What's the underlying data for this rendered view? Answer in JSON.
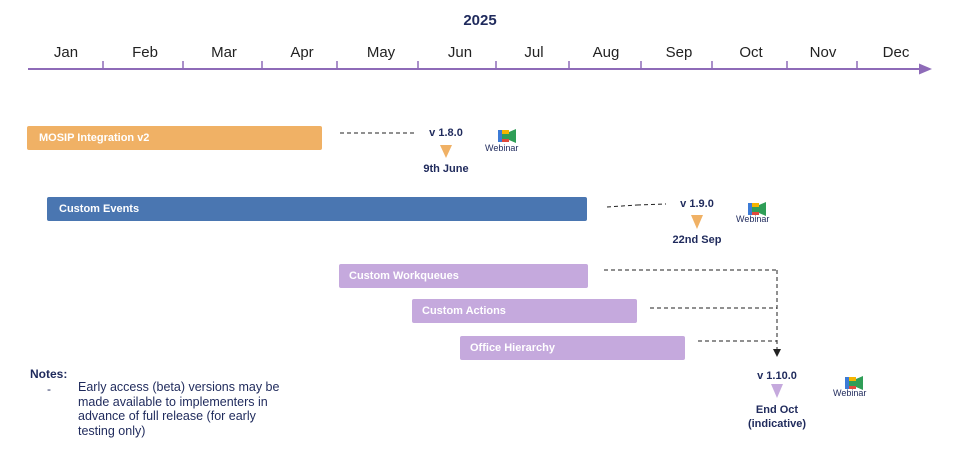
{
  "year": "2025",
  "months": [
    "Jan",
    "Feb",
    "Mar",
    "Apr",
    "May",
    "Jun",
    "Jul",
    "Aug",
    "Sep",
    "Oct",
    "Nov",
    "Dec"
  ],
  "bars": [
    {
      "label": "MOSIP Integration v2"
    },
    {
      "label": "Custom Events"
    },
    {
      "label": "Custom Workqueues"
    },
    {
      "label": "Custom Actions"
    },
    {
      "label": "Office Hierarchy"
    }
  ],
  "milestones": [
    {
      "version": "v 1.8.0",
      "date": "9th June",
      "webinar": "Webinar"
    },
    {
      "version": "v 1.9.0",
      "date": "22nd Sep",
      "webinar": "Webinar"
    },
    {
      "version": "v 1.10.0",
      "date_line1": "End Oct",
      "date_line2": "(indicative)",
      "webinar": "Webinar"
    }
  ],
  "notes": {
    "title": "Notes:",
    "dash": "-",
    "text": "Early access (beta) versions may be made available to implementers in advance of full release (for early testing only)"
  },
  "colors": {
    "timeline": "#8e6bb8",
    "orange": "#f0b165",
    "blue": "#4a76b1",
    "purple": "#c5a9dd",
    "text": "#1f2a5c"
  }
}
